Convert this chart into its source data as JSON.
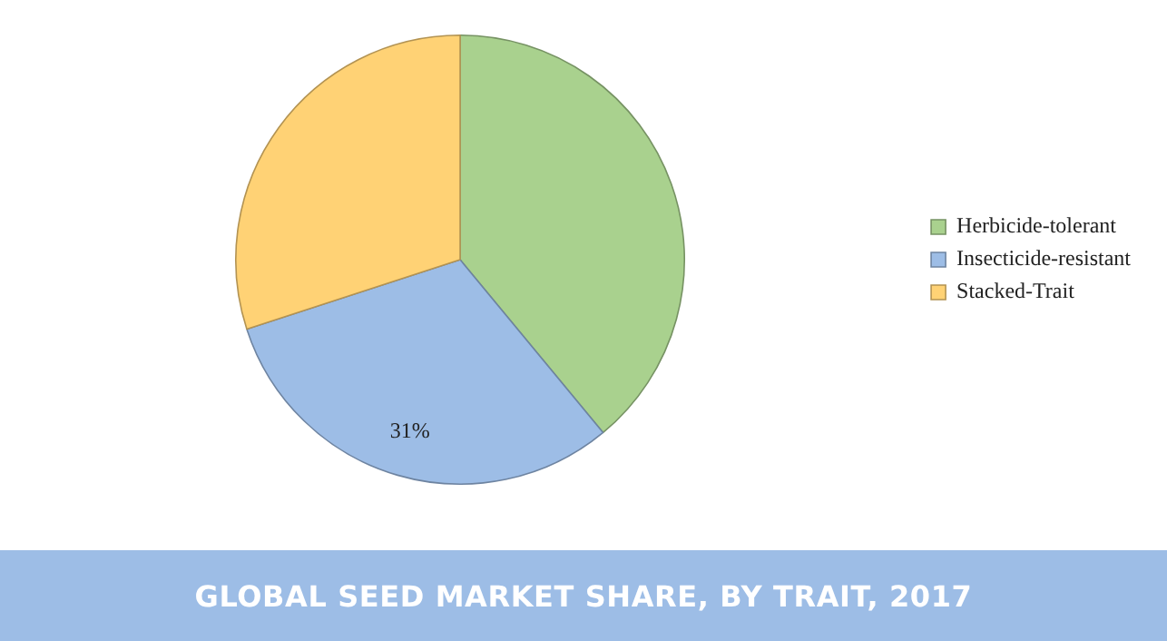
{
  "chart_data": {
    "type": "pie",
    "title": "GLOBAL SEED MARKET SHARE, BY TRAIT, 2017",
    "categories": [
      "Herbicide-tolerant",
      "Insecticide-resistant",
      "Stacked-Trait"
    ],
    "values": [
      39,
      31,
      30
    ],
    "colors": [
      "#a9d18e",
      "#9dbde6",
      "#ffd275"
    ],
    "value_labels": [
      null,
      "31%",
      null
    ],
    "legend": "right"
  }
}
